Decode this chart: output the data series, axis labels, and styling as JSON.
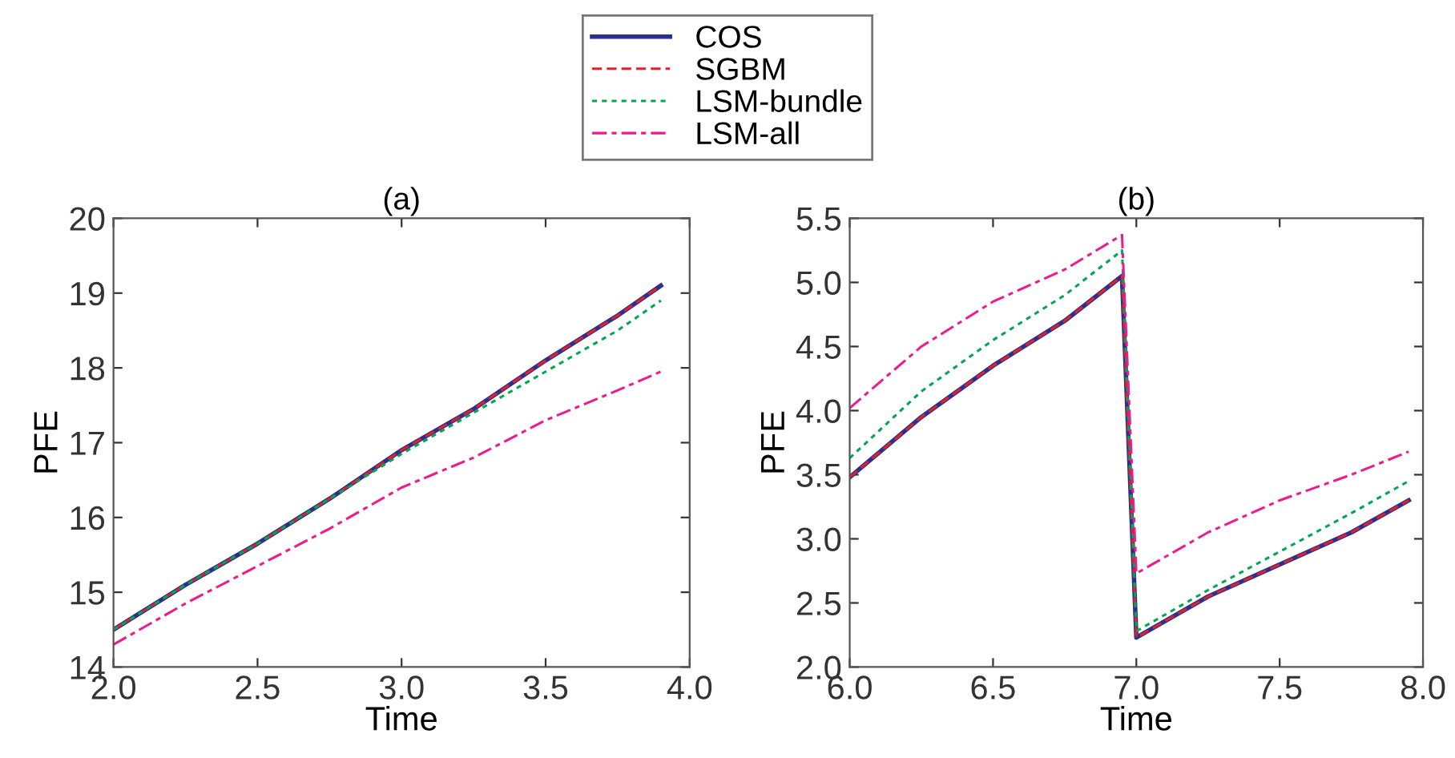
{
  "chart_data": [
    {
      "type": "line",
      "title": "(a)",
      "xlabel": "Time",
      "ylabel": "PFE",
      "xlim": [
        2.0,
        4.0
      ],
      "xticks": [
        {
          "value": 2.0,
          "label": "2.0"
        },
        2.5,
        {
          "value": 3.0,
          "label": "3.0"
        },
        3.5,
        {
          "value": 4.0,
          "label": "4.0"
        }
      ],
      "ylim": [
        14,
        20
      ],
      "yticks": [
        14,
        15,
        16,
        17,
        18,
        19,
        20
      ],
      "grid": false,
      "legend": "top",
      "x": [
        2.0,
        2.25,
        2.5,
        2.75,
        3.0,
        3.25,
        3.5,
        3.75,
        3.9
      ],
      "series": [
        {
          "name": "COS",
          "color": "#2b2f8f",
          "line_style": "solid",
          "values": [
            14.5,
            15.1,
            15.65,
            16.25,
            16.9,
            17.45,
            18.1,
            18.7,
            19.1
          ]
        },
        {
          "name": "SGBM",
          "color": "#e0202a",
          "line_style": "dashed",
          "values": [
            14.5,
            15.1,
            15.65,
            16.25,
            16.9,
            17.45,
            18.1,
            18.7,
            19.1
          ]
        },
        {
          "name": "LSM-bundle",
          "color": "#00a651",
          "line_style": "dotted",
          "values": [
            14.5,
            15.1,
            15.65,
            16.25,
            16.85,
            17.4,
            17.95,
            18.5,
            18.9
          ]
        },
        {
          "name": "LSM-all",
          "color": "#ec1c8c",
          "line_style": "dashdot",
          "values": [
            14.3,
            14.85,
            15.35,
            15.85,
            16.4,
            16.8,
            17.3,
            17.7,
            17.95
          ]
        }
      ]
    },
    {
      "type": "line",
      "title": "(b)",
      "xlabel": "Time",
      "ylabel": "PFE",
      "xlim": [
        6.0,
        8.0
      ],
      "xticks": [
        {
          "value": 6.0,
          "label": "6.0"
        },
        6.5,
        {
          "value": 7.0,
          "label": "7.0"
        },
        7.5,
        {
          "value": 8.0,
          "label": "8.0"
        }
      ],
      "ylim": [
        2.0,
        5.5
      ],
      "yticks": [
        {
          "value": 2.0,
          "label": "2.0"
        },
        2.5,
        {
          "value": 3.0,
          "label": "3.0"
        },
        3.5,
        {
          "value": 4.0,
          "label": "4.0"
        },
        4.5,
        {
          "value": 5.0,
          "label": "5.0"
        },
        5.5
      ],
      "grid": false,
      "x": [
        6.0,
        6.25,
        6.5,
        6.75,
        6.95,
        7.0,
        7.25,
        7.5,
        7.75,
        7.95
      ],
      "series": [
        {
          "color": "#2b2f8f",
          "line_style": "solid",
          "values": [
            3.48,
            3.95,
            4.35,
            4.7,
            5.05,
            2.23,
            2.55,
            2.8,
            3.05,
            3.3
          ]
        },
        {
          "color": "#e0202a",
          "line_style": "dashed",
          "values": [
            3.48,
            3.95,
            4.35,
            4.7,
            5.05,
            2.23,
            2.55,
            2.8,
            3.05,
            3.3
          ]
        },
        {
          "color": "#00a651",
          "line_style": "dotted",
          "values": [
            3.63,
            4.15,
            4.55,
            4.9,
            5.25,
            2.28,
            2.6,
            2.9,
            3.2,
            3.45
          ]
        },
        {
          "color": "#ec1c8c",
          "line_style": "dashdot",
          "values": [
            4.02,
            4.5,
            4.85,
            5.1,
            5.37,
            2.73,
            3.05,
            3.3,
            3.5,
            3.68
          ]
        }
      ]
    }
  ]
}
